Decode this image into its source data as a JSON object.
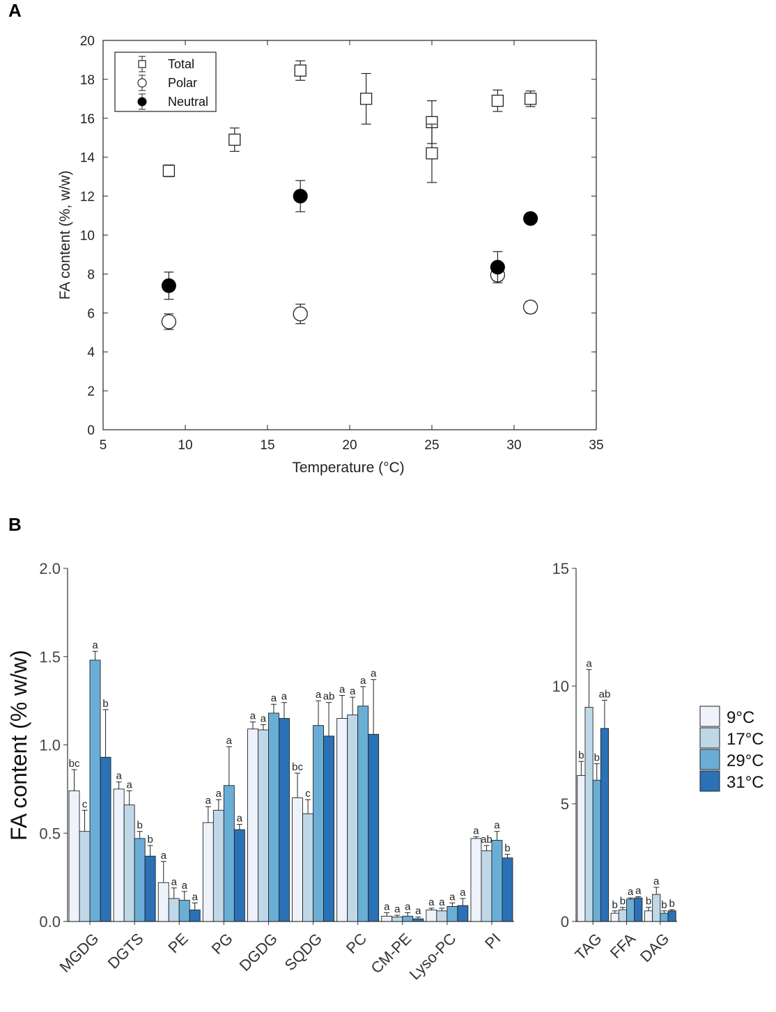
{
  "panels": {
    "a": "A",
    "b": "B"
  },
  "chart_data": [
    {
      "type": "scatter",
      "panel": "A",
      "xlabel": "Temperature (°C)",
      "ylabel": "FA content (%, w/w)",
      "xlim": [
        5,
        35
      ],
      "ylim": [
        0,
        20
      ],
      "xticks": [
        5,
        10,
        15,
        20,
        25,
        30,
        35
      ],
      "yticks": [
        0,
        2,
        4,
        6,
        8,
        10,
        12,
        14,
        16,
        18,
        20
      ],
      "legend_position": "top-left",
      "series": [
        {
          "name": "Total",
          "marker": "open-square",
          "points": [
            {
              "x": 9,
              "y": 13.3,
              "err": 0.3
            },
            {
              "x": 13,
              "y": 14.9,
              "err": 0.6
            },
            {
              "x": 17,
              "y": 18.45,
              "err": 0.5
            },
            {
              "x": 21,
              "y": 17.0,
              "err": 1.3
            },
            {
              "x": 25,
              "y": 15.8,
              "err": 1.1
            },
            {
              "x": 25,
              "y": 14.2,
              "err": 1.5
            },
            {
              "x": 29,
              "y": 16.9,
              "err": 0.55
            },
            {
              "x": 31,
              "y": 17.0,
              "err": 0.4
            }
          ]
        },
        {
          "name": "Polar",
          "marker": "open-circle",
          "points": [
            {
              "x": 9,
              "y": 5.55,
              "err": 0.4
            },
            {
              "x": 17,
              "y": 5.95,
              "err": 0.5
            },
            {
              "x": 29,
              "y": 7.95,
              "err": 0.3
            },
            {
              "x": 31,
              "y": 6.3,
              "err": 0.3
            }
          ]
        },
        {
          "name": "Neutral",
          "marker": "filled-circle",
          "points": [
            {
              "x": 9,
              "y": 7.4,
              "err": 0.7
            },
            {
              "x": 17,
              "y": 12.0,
              "err": 0.8
            },
            {
              "x": 29,
              "y": 8.35,
              "err": 0.8
            },
            {
              "x": 31,
              "y": 10.85,
              "err": 0.0
            }
          ]
        }
      ]
    },
    {
      "type": "bar",
      "panel": "B-left",
      "ylabel": "FA content (% w/w)",
      "ylim": [
        0,
        2.0
      ],
      "yticks": [
        0.0,
        0.5,
        1.0,
        1.5,
        2.0
      ],
      "yticklabels": [
        "0.0",
        "0.5",
        "1.0",
        "1.5",
        "2.0"
      ],
      "categories": [
        "MGDG",
        "DGTS",
        "PE",
        "PG",
        "DGDG",
        "SQDG",
        "PC",
        "CM-PE",
        "Lyso-PC",
        "PI"
      ],
      "series": [
        {
          "name": "9°C",
          "color": "#eef2fb",
          "values": [
            0.74,
            0.75,
            0.22,
            0.56,
            1.09,
            0.7,
            1.15,
            0.03,
            0.065,
            0.47
          ],
          "errors": [
            0.12,
            0.04,
            0.12,
            0.09,
            0.04,
            0.14,
            0.13,
            0.02,
            0.01,
            0.01
          ],
          "letters": [
            "bc",
            "a",
            "a",
            "a",
            "a",
            "bc",
            "a",
            "a",
            "a",
            "a"
          ]
        },
        {
          "name": "17°C",
          "color": "#bfd8e8",
          "values": [
            0.51,
            0.66,
            0.13,
            0.63,
            1.085,
            0.61,
            1.17,
            0.025,
            0.06,
            0.4
          ],
          "errors": [
            0.12,
            0.08,
            0.06,
            0.06,
            0.03,
            0.08,
            0.1,
            0.01,
            0.015,
            0.03
          ],
          "letters": [
            "c",
            "a",
            "a",
            "a",
            "a",
            "c",
            "a",
            "a",
            "a",
            "ab"
          ]
        },
        {
          "name": "29°C",
          "color": "#6aaed6",
          "values": [
            1.48,
            0.47,
            0.12,
            0.77,
            1.18,
            1.11,
            1.22,
            0.03,
            0.085,
            0.46
          ],
          "errors": [
            0.05,
            0.04,
            0.05,
            0.22,
            0.05,
            0.14,
            0.11,
            0.02,
            0.02,
            0.05
          ],
          "letters": [
            "a",
            "b",
            "a",
            "a",
            "a",
            "a",
            "a",
            "a",
            "a",
            "a"
          ]
        },
        {
          "name": "31°C",
          "color": "#2a71b5",
          "values": [
            0.93,
            0.37,
            0.065,
            0.52,
            1.15,
            1.05,
            1.06,
            0.015,
            0.09,
            0.36
          ],
          "errors": [
            0.27,
            0.06,
            0.04,
            0.03,
            0.09,
            0.19,
            0.31,
            0.01,
            0.04,
            0.02
          ],
          "letters": [
            "b",
            "b",
            "a",
            "a",
            "a",
            "ab",
            "a",
            "a",
            "a",
            "b"
          ]
        }
      ]
    },
    {
      "type": "bar",
      "panel": "B-right",
      "ylim": [
        0,
        15
      ],
      "yticks": [
        0,
        5,
        10,
        15
      ],
      "yticklabels": [
        "0",
        "5",
        "10",
        "15"
      ],
      "categories": [
        "TAG",
        "FFA",
        "DAG"
      ],
      "legend_position": "right",
      "series": [
        {
          "name": "9°C",
          "color": "#eef2fb",
          "values": [
            6.2,
            0.35,
            0.45
          ],
          "errors": [
            0.6,
            0.1,
            0.15
          ],
          "letters": [
            "b",
            "b",
            "b"
          ]
        },
        {
          "name": "17°C",
          "color": "#bfd8e8",
          "values": [
            9.1,
            0.5,
            1.15
          ],
          "errors": [
            1.6,
            0.1,
            0.3
          ],
          "letters": [
            "a",
            "b",
            "a"
          ]
        },
        {
          "name": "29°C",
          "color": "#6aaed6",
          "values": [
            6.0,
            0.95,
            0.35
          ],
          "errors": [
            0.7,
            0.05,
            0.1
          ],
          "letters": [
            "b",
            "a",
            "b"
          ]
        },
        {
          "name": "31°C",
          "color": "#2a71b5",
          "values": [
            8.2,
            1.0,
            0.45
          ],
          "errors": [
            1.2,
            0.05,
            0.05
          ],
          "letters": [
            "ab",
            "a",
            "b"
          ]
        }
      ]
    }
  ]
}
